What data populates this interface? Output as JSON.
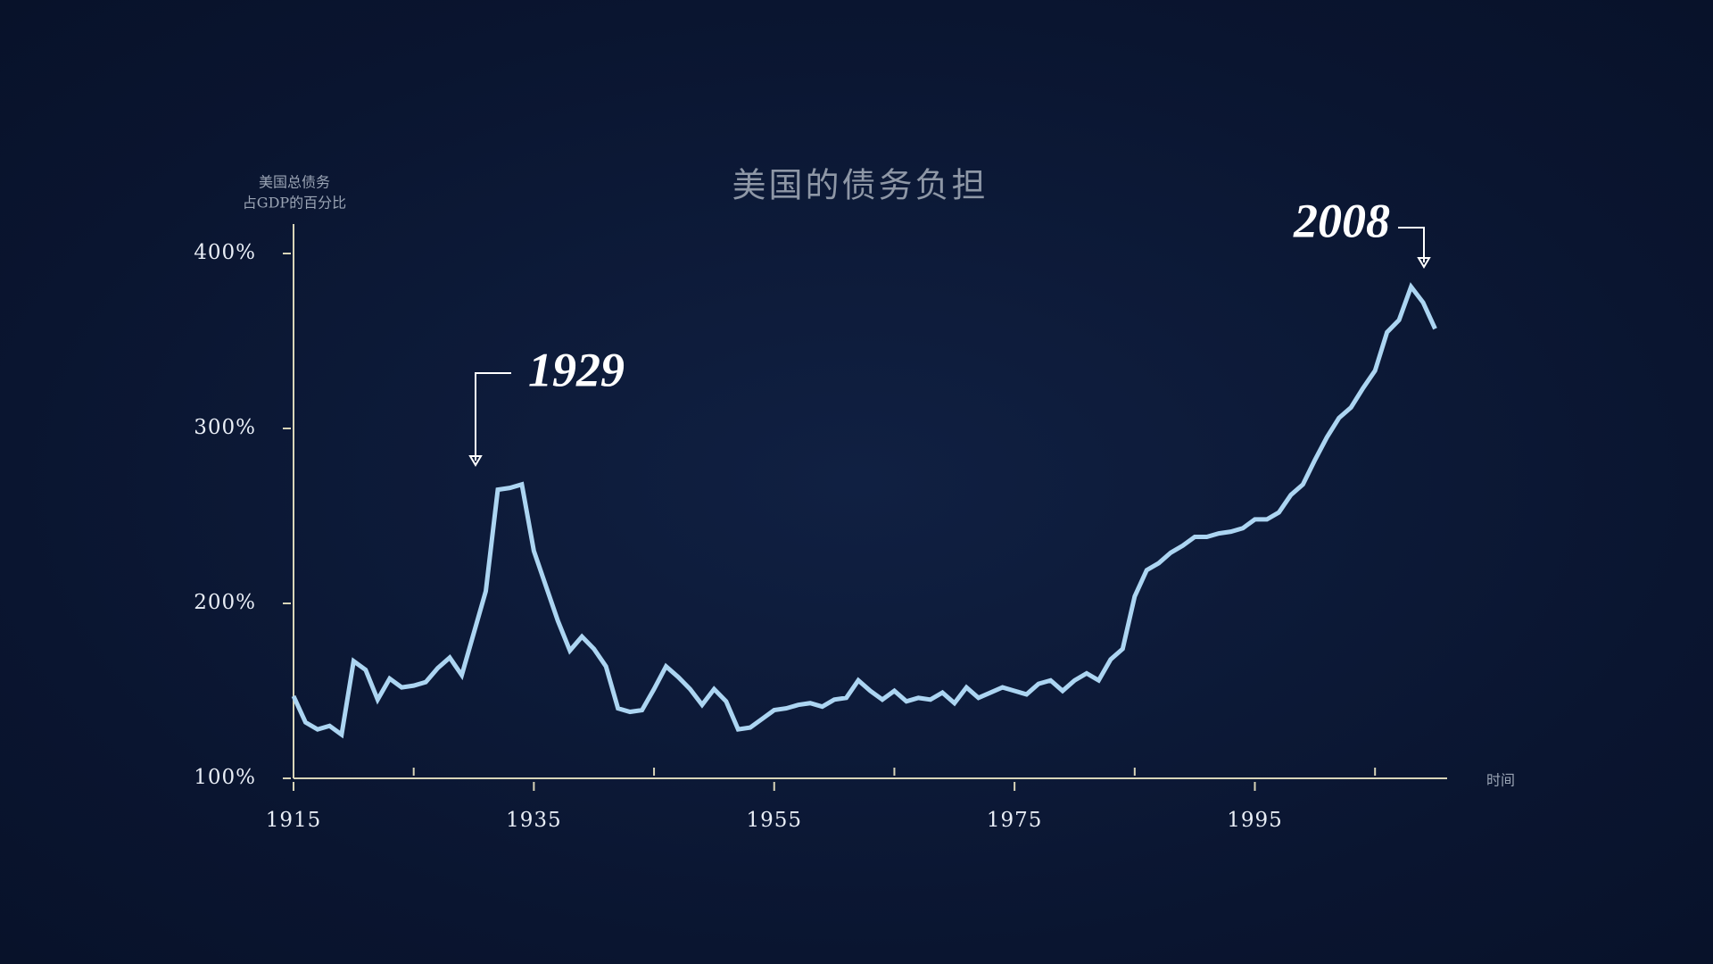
{
  "chart_data": {
    "type": "line",
    "title": "美国的债务负担",
    "y_label": [
      "美国总债务",
      "占GDP的百分比"
    ],
    "x_label": "时间",
    "annotations": [
      "1929",
      "2008"
    ],
    "xlim": [
      1915,
      2011
    ],
    "xticks": [
      1915,
      1935,
      1955,
      1975,
      1995
    ],
    "xminorticks": [
      1925,
      1945,
      1965,
      1985,
      2005
    ],
    "ylim": [
      100,
      400
    ],
    "yticks": [
      {
        "value": 100,
        "label": "100%"
      },
      {
        "value": 200,
        "label": "200%"
      },
      {
        "value": 300,
        "label": "300%"
      },
      {
        "value": 400,
        "label": "400%"
      }
    ],
    "x": [
      1915,
      1916,
      1917,
      1918,
      1919,
      1920,
      1921,
      1922,
      1923,
      1924,
      1925,
      1926,
      1927,
      1928,
      1929,
      1930,
      1931,
      1932,
      1933,
      1934,
      1935,
      1936,
      1937,
      1938,
      1939,
      1940,
      1941,
      1942,
      1943,
      1944,
      1945,
      1946,
      1947,
      1948,
      1949,
      1950,
      1951,
      1952,
      1953,
      1954,
      1955,
      1956,
      1957,
      1958,
      1959,
      1960,
      1961,
      1962,
      1963,
      1964,
      1965,
      1966,
      1967,
      1968,
      1969,
      1970,
      1971,
      1972,
      1973,
      1974,
      1975,
      1976,
      1977,
      1978,
      1979,
      1980,
      1981,
      1982,
      1983,
      1984,
      1985,
      1986,
      1987,
      1988,
      1989,
      1990,
      1991,
      1992,
      1993,
      1994,
      1995,
      1996,
      1997,
      1998,
      1999,
      2000,
      2001,
      2002,
      2003,
      2004,
      2005,
      2006,
      2007,
      2008,
      2009,
      2010
    ],
    "series": [
      {
        "name": "美国总债务占GDP的百分比",
        "color": "#acd5f2",
        "values": [
          147,
          132,
          128,
          130,
          125,
          167,
          162,
          145,
          157,
          152,
          153,
          155,
          163,
          169,
          159,
          183,
          207,
          265,
          266,
          268,
          230,
          210,
          190,
          173,
          181,
          174,
          164,
          140,
          138,
          139,
          151,
          164,
          158,
          151,
          142,
          151,
          144,
          128,
          129,
          134,
          139,
          140,
          142,
          143,
          141,
          145,
          146,
          156,
          150,
          145,
          150,
          144,
          146,
          145,
          149,
          143,
          152,
          146,
          149,
          152,
          150,
          148,
          154,
          156,
          150,
          156,
          160,
          156,
          168,
          174,
          204,
          219,
          223,
          229,
          233,
          238,
          238,
          240,
          241,
          243,
          248,
          248,
          252,
          262,
          268,
          282,
          295,
          306,
          312,
          323,
          333,
          355,
          362,
          381,
          372,
          357
        ]
      }
    ]
  }
}
